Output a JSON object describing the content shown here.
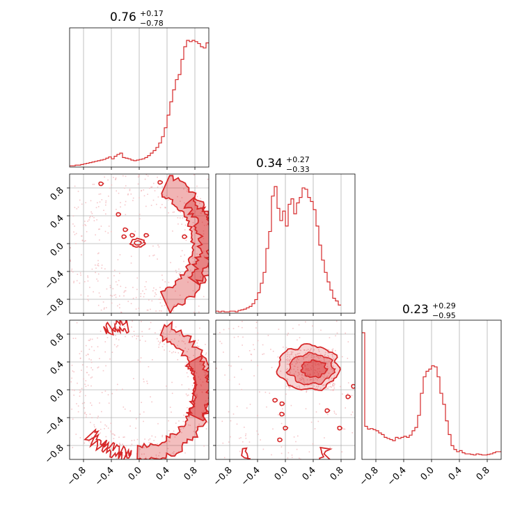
{
  "chart_data": {
    "type": "corner",
    "color": "#d62728",
    "axis_range": [
      -1.0,
      1.0
    ],
    "ticks": [
      -0.8,
      -0.4,
      0.0,
      0.4,
      0.8
    ],
    "tick_labels": [
      "−0.8",
      "−0.4",
      "0.0",
      "0.4",
      "0.8"
    ],
    "grid": true,
    "titles": [
      {
        "value": "0.76",
        "plus": "+0.17",
        "minus": "−0.78"
      },
      {
        "value": "0.34",
        "plus": "+0.27",
        "minus": "−0.33"
      },
      {
        "value": "0.23",
        "plus": "+0.29",
        "minus": "−0.95"
      }
    ],
    "histograms": [
      {
        "name": "param-0",
        "bin_edges_start": -1.0,
        "bin_width": 0.04,
        "counts": [
          2,
          2,
          3,
          3,
          4,
          5,
          6,
          7,
          8,
          9,
          10,
          11,
          12,
          14,
          16,
          13,
          17,
          20,
          22,
          15,
          14,
          13,
          11,
          10,
          11,
          12,
          13,
          15,
          18,
          22,
          26,
          31,
          38,
          48,
          62,
          82,
          103,
          122,
          138,
          146,
          170,
          190,
          200,
          198,
          200,
          198,
          195,
          190,
          188,
          196
        ]
      },
      {
        "name": "param-1",
        "bin_edges_start": -1.0,
        "bin_width": 0.04,
        "counts": [
          3,
          2,
          3,
          2,
          2,
          3,
          3,
          2,
          4,
          5,
          6,
          8,
          10,
          14,
          20,
          30,
          44,
          60,
          95,
          120,
          172,
          186,
          154,
          136,
          150,
          128,
          160,
          168,
          146,
          162,
          170,
          184,
          182,
          170,
          164,
          152,
          128,
          100,
          78,
          60,
          46,
          34,
          22,
          18,
          12
        ]
      },
      {
        "name": "param-2",
        "bin_edges_start": -1.0,
        "bin_width": 0.04,
        "counts": [
          230,
          60,
          55,
          56,
          54,
          52,
          48,
          45,
          40,
          38,
          36,
          34,
          40,
          38,
          40,
          42,
          40,
          44,
          52,
          58,
          80,
          120,
          150,
          160,
          164,
          170,
          168,
          150,
          120,
          100,
          70,
          45,
          25,
          18,
          14,
          16,
          12,
          10,
          10,
          9,
          8,
          10,
          9,
          8,
          8,
          9,
          10,
          12,
          14,
          14
        ]
      }
    ],
    "contours_2d": [
      {
        "x_param": 0,
        "y_param": 1,
        "description_hidden": true
      },
      {
        "x_param": 0,
        "y_param": 2,
        "description_hidden": true
      },
      {
        "x_param": 1,
        "y_param": 2,
        "description_hidden": true
      }
    ]
  }
}
